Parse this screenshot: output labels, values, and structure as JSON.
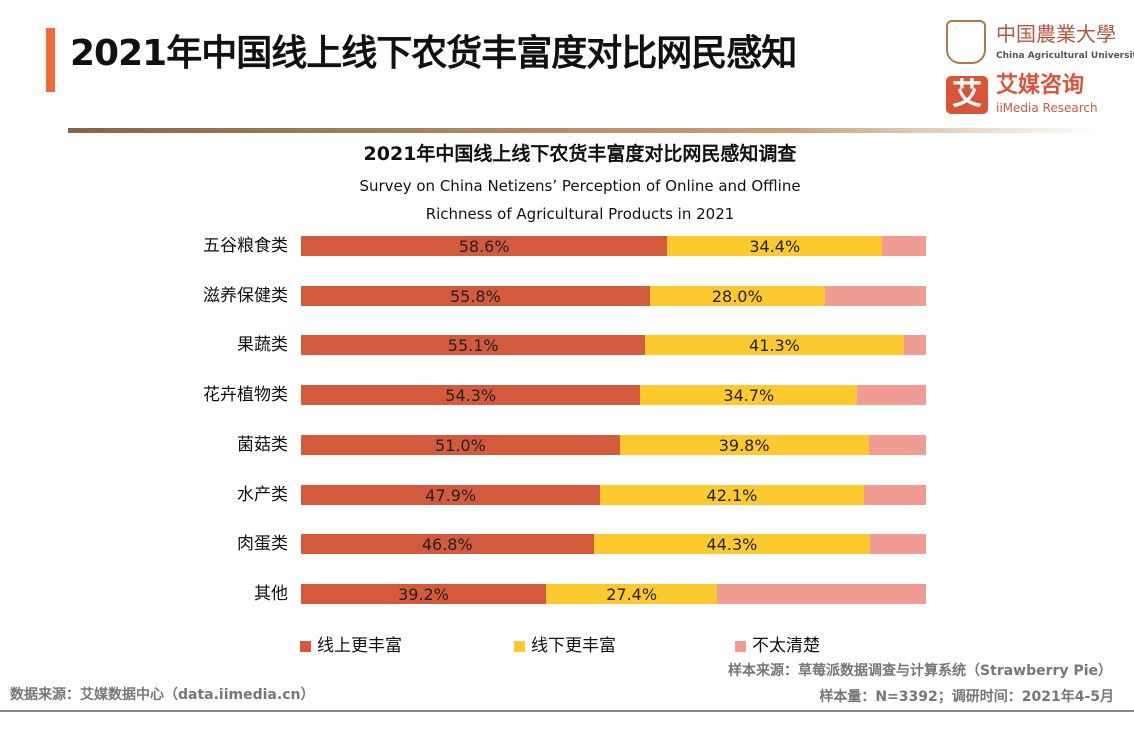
{
  "header": {
    "title": "2021年中国线上线下农货丰富度对比网民感知",
    "logo1_text": "中国農業大學",
    "logo1_sub": "China Agricultural University",
    "logo2_mark": "艾",
    "logo2_text": "艾媒咨询",
    "logo2_sub": "iiMedia Research"
  },
  "chart_data": {
    "type": "bar",
    "orientation": "horizontal",
    "stacked": true,
    "percent": true,
    "title": "2021年中国线上线下农货丰富度对比网民感知调查",
    "subtitle_line1": "Survey on China Netizens’   Perception of Online and Offline",
    "subtitle_line2": "Richness of Agricultural Products in 2021",
    "categories": [
      "五谷粮食类",
      "滋养保健类",
      "果蔬类",
      "花卉植物类",
      "菌菇类",
      "水产类",
      "肉蛋类",
      "其他"
    ],
    "series": [
      {
        "name": "线上更丰富",
        "color": "#d35a3c",
        "values": [
          58.6,
          55.8,
          55.1,
          54.3,
          51.0,
          47.9,
          46.8,
          39.2
        ],
        "labels": [
          "58.6%",
          "55.8%",
          "55.1%",
          "54.3%",
          "51.0%",
          "47.9%",
          "46.8%",
          "39.2%"
        ]
      },
      {
        "name": "线下更丰富",
        "color": "#fcc92e",
        "values": [
          34.4,
          28.0,
          41.3,
          34.7,
          39.8,
          42.1,
          44.3,
          27.4
        ],
        "labels": [
          "34.4%",
          "28.0%",
          "41.3%",
          "34.7%",
          "39.8%",
          "42.1%",
          "44.3%",
          "27.4%"
        ]
      },
      {
        "name": "不太清楚",
        "color": "#f19c93",
        "values": [
          7.0,
          16.2,
          3.6,
          11.0,
          9.2,
          10.0,
          8.9,
          33.4
        ]
      }
    ],
    "legend_position": "bottom",
    "grid": false,
    "xlim": [
      0,
      100
    ]
  },
  "footer": {
    "sample_source": "样本来源：草莓派数据调查与计算系统（Strawberry  Pie）",
    "data_source": "数据来源：艾媒数据中心（data.iimedia.cn）",
    "sample_info": "样本量：N=3392；调研时间：2021年4-5月"
  }
}
